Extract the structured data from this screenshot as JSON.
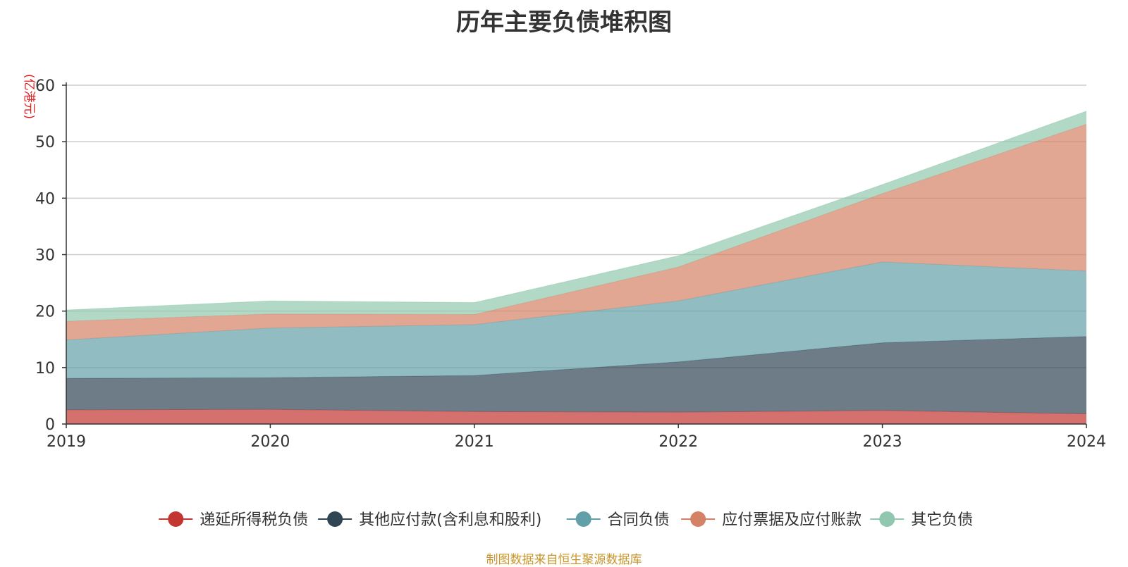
{
  "chart_data": {
    "type": "area",
    "stacked": true,
    "title": "历年主要负债堆积图",
    "unit_label": "(亿港元)",
    "x": [
      "2019",
      "2020",
      "2021",
      "2022",
      "2023",
      "2024"
    ],
    "ylim": [
      0,
      60
    ],
    "yticks": [
      0,
      10,
      20,
      30,
      40,
      50,
      60
    ],
    "grid": true,
    "legend_position": "bottom",
    "series": [
      {
        "name": "递延所得税负债",
        "color": "#c23531",
        "values": [
          2.5,
          2.6,
          2.2,
          2.1,
          2.4,
          1.8
        ]
      },
      {
        "name": "其他应付款(含利息和股利)",
        "color": "#2f4554",
        "values": [
          5.6,
          5.6,
          6.4,
          8.9,
          12.0,
          13.7
        ]
      },
      {
        "name": "合同负债",
        "color": "#61a0a8",
        "values": [
          6.8,
          8.8,
          9.0,
          10.8,
          14.3,
          11.6
        ]
      },
      {
        "name": "应付票据及应付账款",
        "color": "#d48265",
        "values": [
          3.3,
          2.5,
          1.8,
          6.0,
          12.1,
          26.0
        ]
      },
      {
        "name": "其它负债",
        "color": "#91c7ae",
        "values": [
          2.0,
          2.3,
          2.1,
          2.0,
          1.6,
          2.3
        ]
      }
    ]
  },
  "source_note": "制图数据来自恒生聚源数据库"
}
